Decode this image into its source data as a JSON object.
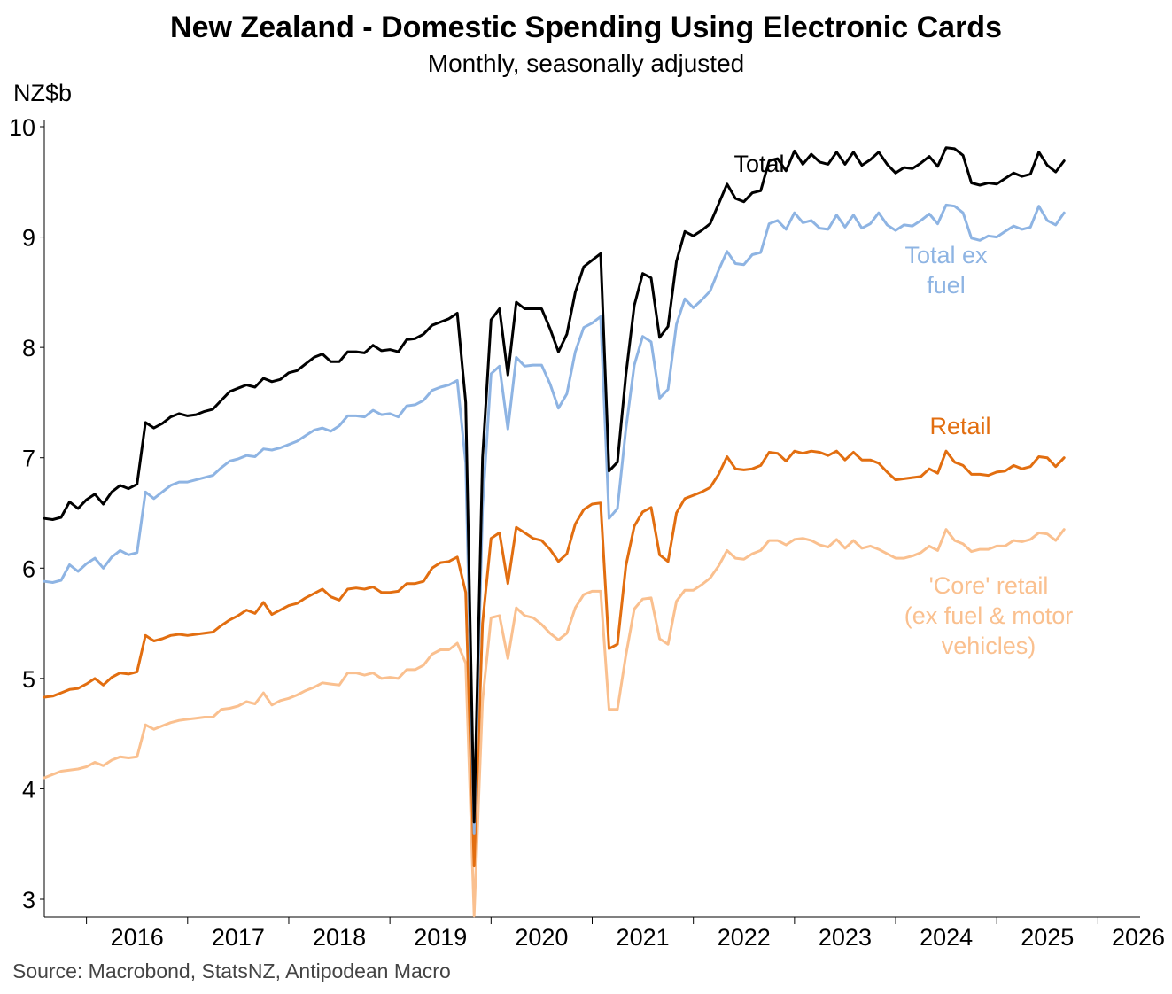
{
  "chart_data": {
    "type": "line",
    "title": "New Zealand - Domestic Spending Using Electronic Cards",
    "subtitle": "Monthly, seasonally adjusted",
    "ylabel": "NZ$b",
    "xlabel": "",
    "ylim": [
      3,
      10
    ],
    "yticks": [
      3,
      4,
      5,
      6,
      7,
      8,
      9,
      10
    ],
    "xlim": [
      2015.583,
      2026.417
    ],
    "year_labels": [
      "2016",
      "2017",
      "2018",
      "2019",
      "2020",
      "2021",
      "2022",
      "2023",
      "2024",
      "2025",
      "2026"
    ],
    "source": "Source: Macrobond, StatsNZ, Antipodean Macro",
    "x_start": 2015.583,
    "x_step": 0.08333,
    "series": [
      {
        "name": "Total",
        "label_lines": [
          "Total"
        ],
        "color": "#000000",
        "values": [
          6.45,
          6.44,
          6.46,
          6.6,
          6.54,
          6.62,
          6.67,
          6.58,
          6.69,
          6.75,
          6.72,
          6.76,
          7.32,
          7.27,
          7.31,
          7.37,
          7.4,
          7.38,
          7.39,
          7.42,
          7.44,
          7.52,
          7.6,
          7.63,
          7.66,
          7.64,
          7.72,
          7.69,
          7.71,
          7.77,
          7.79,
          7.85,
          7.91,
          7.94,
          7.87,
          7.87,
          7.96,
          7.96,
          7.95,
          8.02,
          7.97,
          7.98,
          7.96,
          8.07,
          8.08,
          8.12,
          8.2,
          8.23,
          8.26,
          8.31,
          7.5,
          3.7,
          7.0,
          8.25,
          8.35,
          7.75,
          8.41,
          8.35,
          8.35,
          8.35,
          8.17,
          7.96,
          8.12,
          8.5,
          8.73,
          8.79,
          8.85,
          6.88,
          6.96,
          7.75,
          8.38,
          8.67,
          8.63,
          8.09,
          8.19,
          8.78,
          9.05,
          9.01,
          9.06,
          9.12,
          9.3,
          9.48,
          9.35,
          9.32,
          9.4,
          9.42,
          9.69,
          9.71,
          9.6,
          9.78,
          9.66,
          9.75,
          9.68,
          9.66,
          9.77,
          9.66,
          9.77,
          9.65,
          9.7,
          9.77,
          9.66,
          9.58,
          9.63,
          9.62,
          9.67,
          9.73,
          9.64,
          9.81,
          9.8,
          9.74,
          9.49,
          9.47,
          9.49,
          9.48,
          9.53,
          9.58,
          9.55,
          9.57,
          9.77,
          9.65,
          9.59,
          9.69
        ]
      },
      {
        "name": "Total ex fuel",
        "label_lines": [
          "Total ex",
          "fuel"
        ],
        "color": "#8EB4E3",
        "values": [
          5.88,
          5.87,
          5.89,
          6.03,
          5.97,
          6.04,
          6.09,
          6.0,
          6.1,
          6.16,
          6.12,
          6.14,
          6.69,
          6.63,
          6.69,
          6.75,
          6.78,
          6.78,
          6.8,
          6.82,
          6.84,
          6.91,
          6.97,
          6.99,
          7.02,
          7.01,
          7.08,
          7.07,
          7.09,
          7.12,
          7.15,
          7.2,
          7.25,
          7.27,
          7.24,
          7.29,
          7.38,
          7.38,
          7.37,
          7.43,
          7.39,
          7.4,
          7.37,
          7.47,
          7.48,
          7.52,
          7.61,
          7.64,
          7.66,
          7.7,
          6.95,
          3.6,
          6.55,
          7.76,
          7.83,
          7.26,
          7.91,
          7.83,
          7.84,
          7.84,
          7.67,
          7.45,
          7.58,
          7.96,
          8.18,
          8.22,
          8.28,
          6.45,
          6.54,
          7.26,
          7.84,
          8.1,
          8.05,
          7.54,
          7.62,
          8.21,
          8.44,
          8.36,
          8.43,
          8.51,
          8.7,
          8.87,
          8.76,
          8.75,
          8.84,
          8.86,
          9.12,
          9.15,
          9.07,
          9.22,
          9.13,
          9.15,
          9.08,
          9.07,
          9.2,
          9.09,
          9.2,
          9.08,
          9.12,
          9.22,
          9.11,
          9.06,
          9.11,
          9.1,
          9.15,
          9.21,
          9.12,
          9.29,
          9.28,
          9.22,
          8.99,
          8.97,
          9.01,
          9.0,
          9.05,
          9.1,
          9.07,
          9.09,
          9.28,
          9.15,
          9.11,
          9.22
        ]
      },
      {
        "name": "Retail",
        "label_lines": [
          "Retail"
        ],
        "color": "#E26E10",
        "values": [
          4.83,
          4.84,
          4.87,
          4.9,
          4.91,
          4.95,
          5.0,
          4.94,
          5.01,
          5.05,
          5.04,
          5.06,
          5.39,
          5.34,
          5.36,
          5.39,
          5.4,
          5.39,
          5.4,
          5.41,
          5.42,
          5.48,
          5.53,
          5.57,
          5.62,
          5.59,
          5.69,
          5.58,
          5.62,
          5.66,
          5.68,
          5.73,
          5.77,
          5.81,
          5.74,
          5.71,
          5.81,
          5.82,
          5.81,
          5.83,
          5.78,
          5.78,
          5.79,
          5.86,
          5.86,
          5.88,
          6.0,
          6.05,
          6.06,
          6.1,
          5.78,
          3.3,
          5.5,
          6.27,
          6.32,
          5.86,
          6.37,
          6.32,
          6.27,
          6.25,
          6.17,
          6.06,
          6.13,
          6.4,
          6.53,
          6.58,
          6.59,
          5.27,
          5.31,
          6.02,
          6.38,
          6.51,
          6.55,
          6.12,
          6.06,
          6.5,
          6.63,
          6.66,
          6.69,
          6.73,
          6.85,
          7.01,
          6.9,
          6.89,
          6.9,
          6.93,
          7.05,
          7.04,
          6.97,
          7.06,
          7.04,
          7.06,
          7.05,
          7.02,
          7.06,
          6.98,
          7.05,
          6.98,
          6.98,
          6.95,
          6.87,
          6.8,
          6.81,
          6.82,
          6.83,
          6.9,
          6.86,
          7.06,
          6.96,
          6.93,
          6.85,
          6.85,
          6.84,
          6.87,
          6.88,
          6.93,
          6.9,
          6.92,
          7.01,
          7.0,
          6.92,
          7.0
        ]
      },
      {
        "name": "'Core' retail (ex fuel & motor vehicles)",
        "label_lines": [
          "'Core' retail",
          "(ex fuel & motor",
          "vehicles)"
        ],
        "color": "#FAC08F",
        "values": [
          4.1,
          4.13,
          4.16,
          4.17,
          4.18,
          4.2,
          4.24,
          4.21,
          4.26,
          4.29,
          4.28,
          4.29,
          4.58,
          4.54,
          4.57,
          4.6,
          4.62,
          4.63,
          4.64,
          4.65,
          4.65,
          4.72,
          4.73,
          4.75,
          4.79,
          4.77,
          4.87,
          4.76,
          4.8,
          4.82,
          4.85,
          4.89,
          4.92,
          4.96,
          4.95,
          4.94,
          5.05,
          5.05,
          5.03,
          5.05,
          5.0,
          5.01,
          5.0,
          5.08,
          5.08,
          5.12,
          5.22,
          5.26,
          5.26,
          5.32,
          5.14,
          2.85,
          4.8,
          5.55,
          5.57,
          5.18,
          5.64,
          5.57,
          5.55,
          5.49,
          5.41,
          5.35,
          5.41,
          5.64,
          5.76,
          5.79,
          5.79,
          4.72,
          4.72,
          5.21,
          5.63,
          5.72,
          5.73,
          5.36,
          5.31,
          5.7,
          5.8,
          5.8,
          5.85,
          5.91,
          6.02,
          6.16,
          6.09,
          6.08,
          6.13,
          6.16,
          6.25,
          6.25,
          6.21,
          6.26,
          6.27,
          6.25,
          6.21,
          6.19,
          6.26,
          6.18,
          6.25,
          6.18,
          6.2,
          6.17,
          6.13,
          6.09,
          6.09,
          6.11,
          6.14,
          6.2,
          6.16,
          6.35,
          6.25,
          6.22,
          6.15,
          6.17,
          6.17,
          6.2,
          6.2,
          6.25,
          6.24,
          6.26,
          6.32,
          6.31,
          6.25,
          6.35
        ]
      }
    ]
  }
}
